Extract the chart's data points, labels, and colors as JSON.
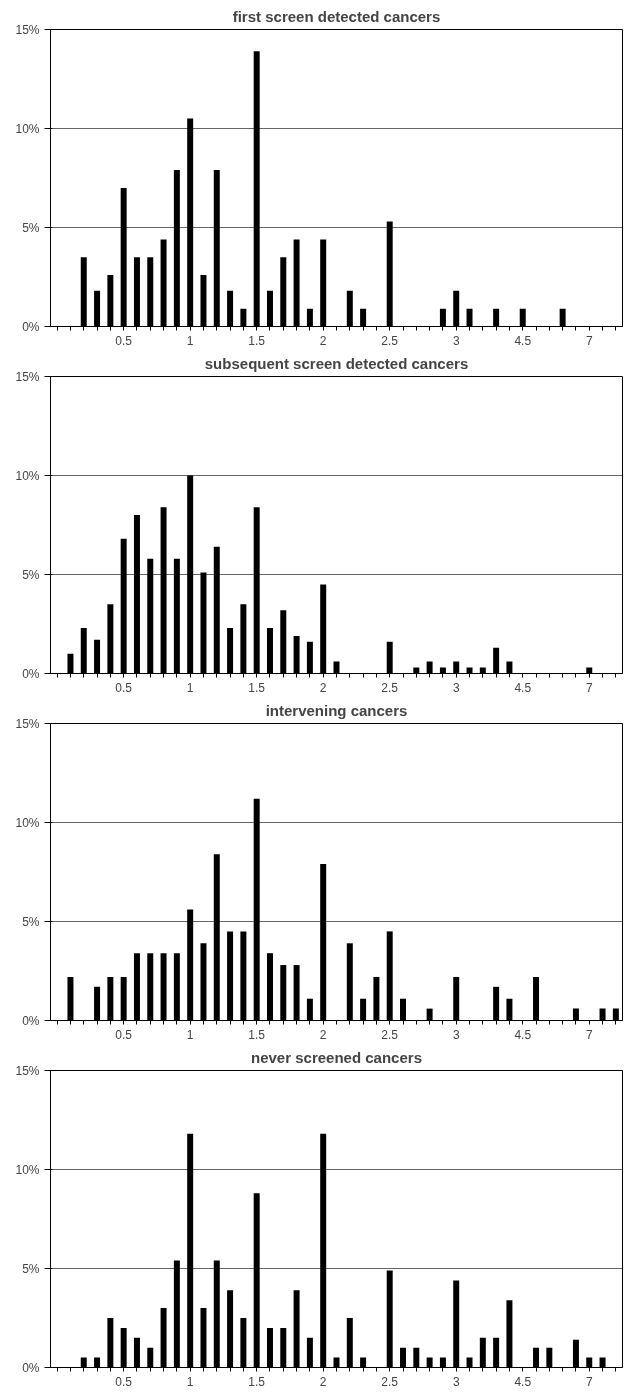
{
  "chart_data": [
    {
      "type": "bar",
      "title": "first screen detected cancers",
      "categories": [
        null,
        null,
        null,
        null,
        null,
        "0.5",
        null,
        null,
        null,
        null,
        "1",
        null,
        null,
        null,
        null,
        "1.5",
        null,
        null,
        null,
        null,
        "2",
        null,
        null,
        null,
        null,
        "2.5",
        null,
        null,
        null,
        null,
        "3",
        null,
        null,
        null,
        null,
        "4.5",
        null,
        null,
        null,
        null,
        "7",
        null,
        null
      ],
      "series": [
        {
          "color": "#000000",
          "values": [
            0,
            0,
            3.5,
            1.8,
            2.6,
            7.0,
            3.5,
            3.5,
            4.4,
            7.9,
            10.5,
            2.6,
            7.9,
            1.8,
            0.9,
            13.9,
            1.8,
            3.5,
            4.4,
            0.9,
            4.4,
            0,
            1.8,
            0.9,
            0,
            5.3,
            0,
            0,
            0,
            0.9,
            1.8,
            0.9,
            0,
            0.9,
            0,
            0.9,
            0,
            0,
            0.9,
            0,
            0,
            0,
            0
          ]
        }
      ],
      "ylim": [
        0,
        15
      ],
      "yticks": [
        {
          "value": 0,
          "label": "0%"
        },
        {
          "value": 5,
          "label": "5%"
        },
        {
          "value": 10,
          "label": "10%"
        },
        {
          "value": 15,
          "label": "15%"
        }
      ],
      "grid": "y"
    },
    {
      "type": "bar",
      "title": "subsequent screen detected cancers",
      "categories": [
        null,
        null,
        null,
        null,
        null,
        "0.5",
        null,
        null,
        null,
        null,
        "1",
        null,
        null,
        null,
        null,
        "1.5",
        null,
        null,
        null,
        null,
        "2",
        null,
        null,
        null,
        null,
        "2.5",
        null,
        null,
        null,
        null,
        "3",
        null,
        null,
        null,
        null,
        "4.5",
        null,
        null,
        null,
        null,
        "7",
        null,
        null
      ],
      "series": [
        {
          "color": "#000000",
          "values": [
            0,
            1.0,
            2.3,
            1.7,
            3.5,
            6.8,
            8.0,
            5.8,
            8.4,
            5.8,
            10.0,
            5.1,
            6.4,
            2.3,
            3.5,
            8.4,
            2.3,
            3.2,
            1.9,
            1.6,
            4.5,
            0.6,
            0,
            0,
            0,
            1.6,
            0,
            0.3,
            0.6,
            0.3,
            0.6,
            0.3,
            0.3,
            1.3,
            0.6,
            0,
            0,
            0,
            0,
            0,
            0.3,
            0,
            0
          ]
        }
      ],
      "ylim": [
        0,
        15
      ],
      "yticks": [
        {
          "value": 0,
          "label": "0%"
        },
        {
          "value": 5,
          "label": "5%"
        },
        {
          "value": 10,
          "label": "10%"
        },
        {
          "value": 15,
          "label": "15%"
        }
      ],
      "grid": "y"
    },
    {
      "type": "bar",
      "title": "intervening cancers",
      "categories": [
        null,
        null,
        null,
        null,
        null,
        "0.5",
        null,
        null,
        null,
        null,
        "1",
        null,
        null,
        null,
        null,
        "1.5",
        null,
        null,
        null,
        null,
        "2",
        null,
        null,
        null,
        null,
        "2.5",
        null,
        null,
        null,
        null,
        "3",
        null,
        null,
        null,
        null,
        "4.5",
        null,
        null,
        null,
        null,
        "7",
        null,
        null
      ],
      "series": [
        {
          "color": "#000000",
          "values": [
            0,
            2.2,
            0,
            1.7,
            2.2,
            2.2,
            3.4,
            3.4,
            3.4,
            3.4,
            5.6,
            3.9,
            8.4,
            4.5,
            4.5,
            11.2,
            3.4,
            2.8,
            2.8,
            1.1,
            7.9,
            0,
            3.9,
            1.1,
            2.2,
            4.5,
            1.1,
            0,
            0.6,
            0,
            2.2,
            0,
            0,
            1.7,
            1.1,
            0,
            2.2,
            0,
            0,
            0.6,
            0,
            0.6,
            0.6
          ]
        }
      ],
      "ylim": [
        0,
        15
      ],
      "yticks": [
        {
          "value": 0,
          "label": "0%"
        },
        {
          "value": 5,
          "label": "5%"
        },
        {
          "value": 10,
          "label": "10%"
        },
        {
          "value": 15,
          "label": "15%"
        }
      ],
      "grid": "y"
    },
    {
      "type": "bar",
      "title": "never screened cancers",
      "categories": [
        null,
        null,
        null,
        null,
        null,
        "0.5",
        null,
        null,
        null,
        null,
        "1",
        null,
        null,
        null,
        null,
        "1.5",
        null,
        null,
        null,
        null,
        "2",
        null,
        null,
        null,
        null,
        "2.5",
        null,
        null,
        null,
        null,
        "3",
        null,
        null,
        null,
        null,
        "4.5",
        null,
        null,
        null,
        null,
        "7",
        null,
        null
      ],
      "series": [
        {
          "color": "#000000",
          "values": [
            0,
            0,
            0.5,
            0.5,
            2.5,
            2.0,
            1.5,
            1.0,
            3.0,
            5.4,
            11.8,
            3.0,
            5.4,
            3.9,
            2.5,
            8.8,
            2.0,
            2.0,
            3.9,
            1.5,
            11.8,
            0.5,
            2.5,
            0.5,
            0,
            4.9,
            1.0,
            1.0,
            0.5,
            0.5,
            4.4,
            0.5,
            1.5,
            1.5,
            3.4,
            0,
            1.0,
            1.0,
            0,
            1.4,
            0.5,
            0.5,
            0
          ]
        }
      ],
      "ylim": [
        0,
        15
      ],
      "yticks": [
        {
          "value": 0,
          "label": "0%"
        },
        {
          "value": 5,
          "label": "5%"
        },
        {
          "value": 10,
          "label": "10%"
        },
        {
          "value": 15,
          "label": "15%"
        }
      ],
      "grid": "y"
    }
  ]
}
